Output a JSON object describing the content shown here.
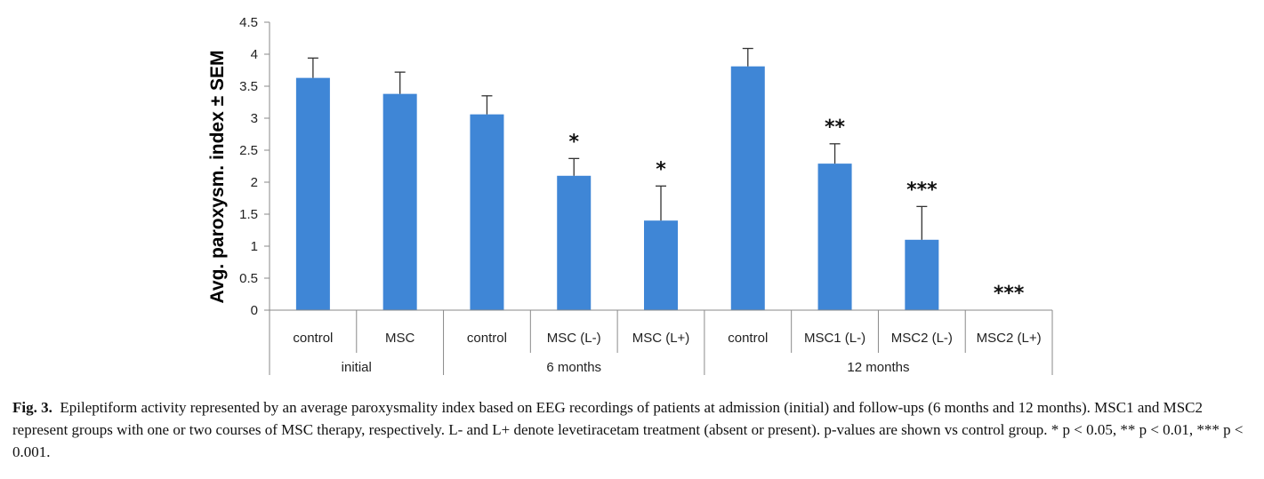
{
  "chart_data": {
    "type": "bar",
    "title": "",
    "ylabel": "Avg. paroxysm. index ± SEM",
    "xlabel": "",
    "ylim": [
      0,
      4.5
    ],
    "yticks": [
      "4.5",
      "4",
      "3.5",
      "3",
      "2.5",
      "2",
      "1.5",
      "1",
      "0.5",
      "0"
    ],
    "grid": false,
    "colors": {
      "bar": "#3f86d6",
      "axis": "#8a8a8a",
      "error": "#333333"
    },
    "categories": [
      "control",
      "MSC",
      "control",
      "MSC (L-)",
      "MSC (L+)",
      "control",
      "MSC1 (L-)",
      "MSC2 (L-)",
      "MSC2 (L+)"
    ],
    "values": [
      3.63,
      3.38,
      3.06,
      2.1,
      1.4,
      3.81,
      2.29,
      1.1,
      0
    ],
    "errors": [
      0.31,
      0.34,
      0.29,
      0.27,
      0.54,
      0.28,
      0.31,
      0.52,
      0
    ],
    "significance": [
      "",
      "",
      "",
      "*",
      "*",
      "",
      "**",
      "***",
      "***"
    ],
    "groups": [
      {
        "label": "initial",
        "count": 2
      },
      {
        "label": "6 months",
        "count": 3
      },
      {
        "label": "12 months",
        "count": 4
      }
    ]
  },
  "caption": {
    "label": "Fig. 3.",
    "text": "Epileptiform activity represented by an average paroxysmality index based on EEG recordings of patients at admission (initial) and follow-ups (6 months and 12 months). MSC1 and MSC2 represent groups with one or two courses of MSC therapy, respectively. L- and L+ denote levetiracetam treatment (absent or present). p-values are shown vs control group. * p < 0.05, ** p < 0.01, *** p < 0.001."
  }
}
